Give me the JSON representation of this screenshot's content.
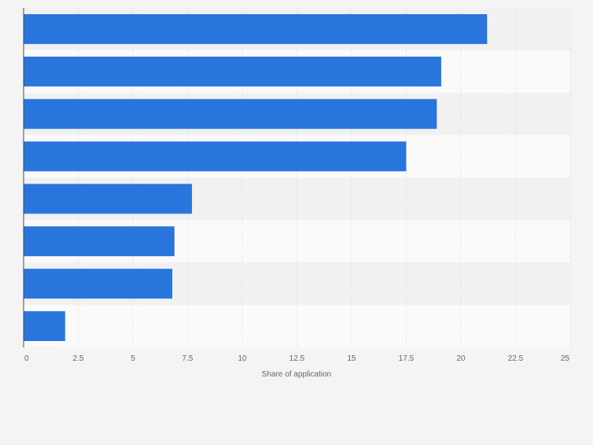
{
  "colors": {
    "background": "#f4f4f4",
    "bar": "#2876dd",
    "band_light": "#fafafa",
    "band_dark": "#f1f1f1",
    "gridline": "#d9d9d9",
    "axis": "#4a4a4a",
    "tick_text": "#666666"
  },
  "chart_data": {
    "type": "bar",
    "orientation": "horizontal",
    "categories": [
      "",
      "",
      "",
      "",
      "",
      "",
      "",
      ""
    ],
    "values": [
      21.2,
      19.1,
      18.9,
      17.5,
      7.7,
      6.9,
      6.8,
      1.9
    ],
    "title": "",
    "xlabel": "Share of application",
    "ylabel": "",
    "xlim": [
      0,
      25
    ],
    "ticks": [
      "0",
      "2.5",
      "5",
      "7.5",
      "10",
      "12.5",
      "15",
      "17.5",
      "20",
      "22.5",
      "25"
    ],
    "grid": true,
    "legend": "none"
  }
}
